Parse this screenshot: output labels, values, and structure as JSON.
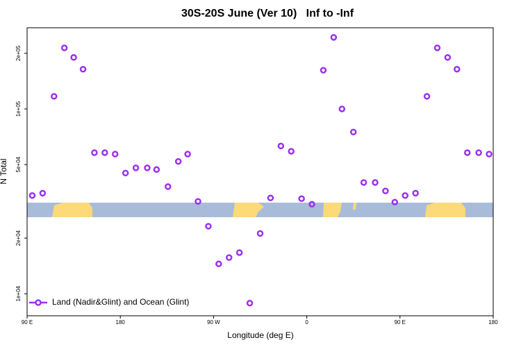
{
  "chart_data": {
    "type": "scatter",
    "title": "30S-20S June (Ver 10)   Inf to -Inf",
    "x_label": "Longitude (deg E)",
    "y_label": "N Total",
    "x": [
      95,
      105,
      116,
      126,
      135,
      144,
      155,
      165,
      175,
      185,
      195,
      206,
      215,
      226,
      236,
      245,
      255,
      265,
      275,
      285,
      295,
      305,
      315,
      325,
      335,
      345,
      355,
      365,
      376,
      386,
      394,
      405,
      415,
      426,
      436,
      445,
      455,
      465,
      476,
      486,
      496,
      505,
      515,
      526,
      536
    ],
    "series": [
      {
        "name": "Land (Nadir&Glint) and Ocean (Glint)",
        "color": "#9b30f0",
        "values": [
          34000,
          35000,
          117000,
          214000,
          190000,
          164000,
          58000,
          58000,
          57000,
          45000,
          48000,
          48000,
          47000,
          38000,
          52000,
          57000,
          31600,
          23200,
          14500,
          15700,
          16700,
          8900,
          21200,
          33000,
          63000,
          59000,
          32700,
          30500,
          162000,
          244000,
          100000,
          75000,
          40000,
          40000,
          36000,
          31300,
          34000,
          35000,
          117000,
          214000,
          190000,
          164000,
          58000,
          58000,
          57000
        ]
      }
    ],
    "xlim": [
      90,
      540
    ],
    "xticks": [
      {
        "value": 90,
        "label": "90 E"
      },
      {
        "value": 180,
        "label": "180"
      },
      {
        "value": 270,
        "label": "90 W"
      },
      {
        "value": 360,
        "label": "0"
      },
      {
        "value": 450,
        "label": "90 E"
      },
      {
        "value": 540,
        "label": "180"
      }
    ],
    "ylim": [
      7600,
      275000
    ],
    "yticks": [
      {
        "value": 10000,
        "label": "1e+04"
      },
      {
        "value": 20000,
        "label": "2e+04"
      },
      {
        "value": 50000,
        "label": "5e+04"
      },
      {
        "value": 100000,
        "label": "1e+05"
      },
      {
        "value": 200000,
        "label": "2e+05"
      }
    ],
    "ylog": true,
    "legend": "bottom-left"
  }
}
